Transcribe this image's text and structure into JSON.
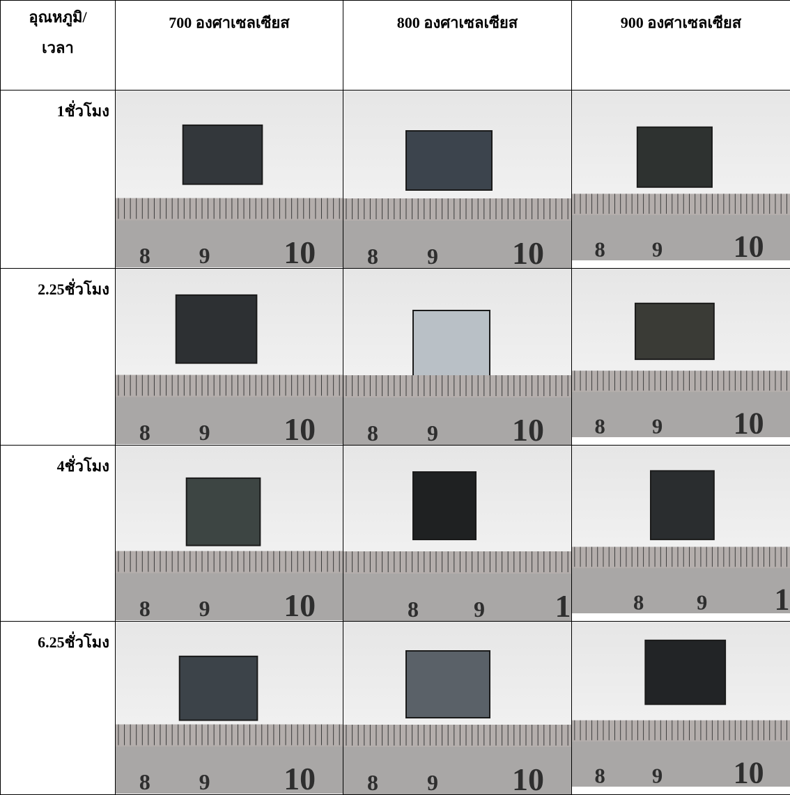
{
  "table": {
    "header": {
      "corner": [
        "อุณหภูมิ/",
        "เวลา"
      ],
      "columns": [
        "700 องศาเซลเซียส",
        "800 องศาเซลเซียส",
        "900 องศาเซลเซียส"
      ]
    },
    "rows": [
      {
        "label": "1ชั่วโมง",
        "photos": [
          {
            "ruler": [
              "8",
              "9",
              "10"
            ]
          },
          {
            "ruler": [
              "8",
              "9",
              "10"
            ]
          },
          {
            "ruler": [
              "8",
              "9",
              "10"
            ]
          }
        ]
      },
      {
        "label": "2.25ชั่วโมง",
        "photos": [
          {
            "ruler": [
              "8",
              "9",
              "10"
            ]
          },
          {
            "ruler": [
              "8",
              "9",
              "10"
            ]
          },
          {
            "ruler": [
              "8",
              "9",
              "10"
            ]
          }
        ]
      },
      {
        "label": "4ชั่วโมง",
        "photos": [
          {
            "ruler": [
              "8",
              "9",
              "10"
            ]
          },
          {
            "ruler": [
              "8",
              "9",
              "1"
            ]
          },
          {
            "ruler": [
              "8",
              "9",
              "1"
            ]
          }
        ]
      },
      {
        "label": "6.25ชั่วโมง",
        "photos": [
          {
            "ruler": [
              "8",
              "9",
              "10"
            ]
          },
          {
            "ruler": [
              "8",
              "9",
              "10"
            ]
          },
          {
            "ruler": [
              "8",
              "9",
              "10"
            ]
          }
        ]
      }
    ]
  }
}
